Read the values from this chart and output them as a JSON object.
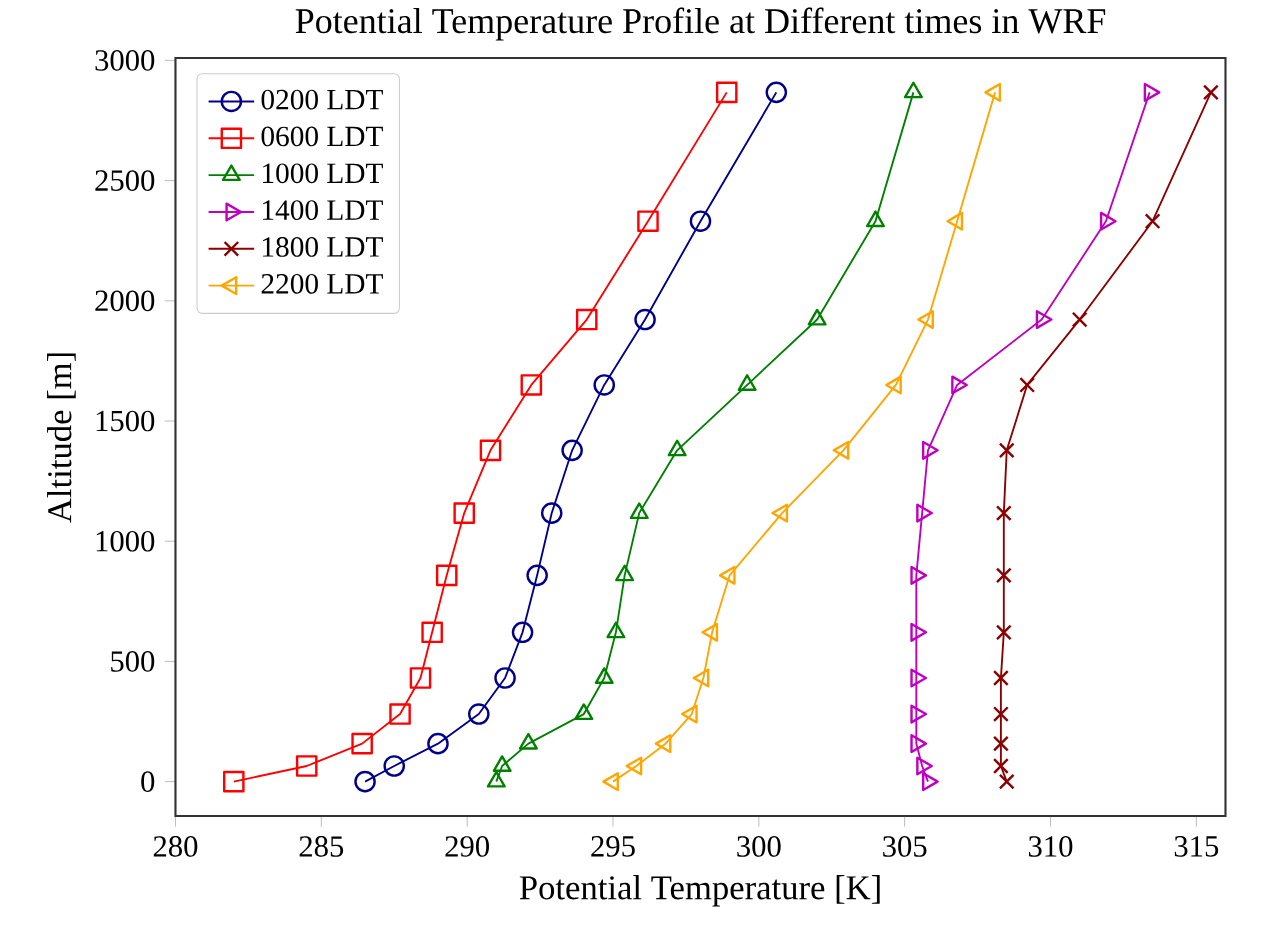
{
  "chart_data": {
    "type": "line",
    "title": "Potential Temperature Profile at Different times in WRF",
    "xlabel": "Potential Temperature [K]",
    "ylabel": "Altitude [m]",
    "xlim": [
      280,
      316
    ],
    "ylim": [
      -143,
      3010
    ],
    "xticks": [
      280,
      285,
      290,
      295,
      300,
      305,
      310,
      315
    ],
    "yticks": [
      0,
      500,
      1000,
      1500,
      2000,
      2500,
      3000
    ],
    "grid": false,
    "legend": "top left",
    "line_style": "solid",
    "series": [
      {
        "name": "0200 LDT",
        "color": "#00008b",
        "marker": "circle",
        "x": [
          286.5,
          287.5,
          289.0,
          290.4,
          291.3,
          291.9,
          292.4,
          292.9,
          293.6,
          294.7,
          296.1,
          298.0,
          300.6
        ],
        "values": [
          0,
          65,
          158,
          281,
          431,
          621,
          858,
          1117,
          1378,
          1650,
          1922,
          2331,
          2867
        ]
      },
      {
        "name": "0600 LDT",
        "color": "#ff0000",
        "marker": "square",
        "x": [
          282.0,
          284.5,
          286.4,
          287.7,
          288.4,
          288.8,
          289.3,
          289.9,
          290.8,
          292.2,
          294.1,
          296.2,
          298.9
        ],
        "values": [
          0,
          65,
          158,
          281,
          431,
          621,
          858,
          1117,
          1378,
          1650,
          1922,
          2331,
          2867
        ]
      },
      {
        "name": "1000 LDT",
        "color": "#008000",
        "marker": "triangle",
        "x": [
          291.0,
          291.2,
          292.1,
          294.0,
          294.7,
          295.1,
          295.4,
          295.9,
          297.2,
          299.6,
          302.0,
          304.0,
          305.3
        ],
        "values": [
          0,
          65,
          158,
          281,
          431,
          621,
          858,
          1117,
          1378,
          1650,
          1922,
          2331,
          2867
        ]
      },
      {
        "name": "1400 LDT",
        "color": "#bf00bf",
        "marker": "triangle-right",
        "x": [
          305.8,
          305.6,
          305.4,
          305.4,
          305.4,
          305.4,
          305.4,
          305.6,
          305.8,
          306.8,
          309.7,
          311.9,
          313.4
        ],
        "values": [
          0,
          65,
          158,
          281,
          431,
          621,
          858,
          1117,
          1378,
          1650,
          1922,
          2331,
          2867
        ]
      },
      {
        "name": "1800 LDT",
        "color": "#8b0000",
        "marker": "cross",
        "x": [
          308.5,
          308.3,
          308.3,
          308.3,
          308.3,
          308.4,
          308.4,
          308.4,
          308.5,
          309.2,
          311.0,
          313.5,
          315.5
        ],
        "values": [
          0,
          65,
          158,
          281,
          431,
          621,
          858,
          1117,
          1378,
          1650,
          1922,
          2331,
          2867
        ]
      },
      {
        "name": "2200 LDT",
        "color": "#ffa500",
        "marker": "triangle-left",
        "x": [
          295.0,
          295.8,
          296.8,
          297.7,
          298.1,
          298.4,
          299.0,
          300.8,
          302.9,
          304.7,
          305.8,
          306.8,
          308.1
        ],
        "values": [
          0,
          65,
          158,
          281,
          431,
          621,
          858,
          1117,
          1378,
          1650,
          1922,
          2331,
          2867
        ]
      }
    ]
  }
}
